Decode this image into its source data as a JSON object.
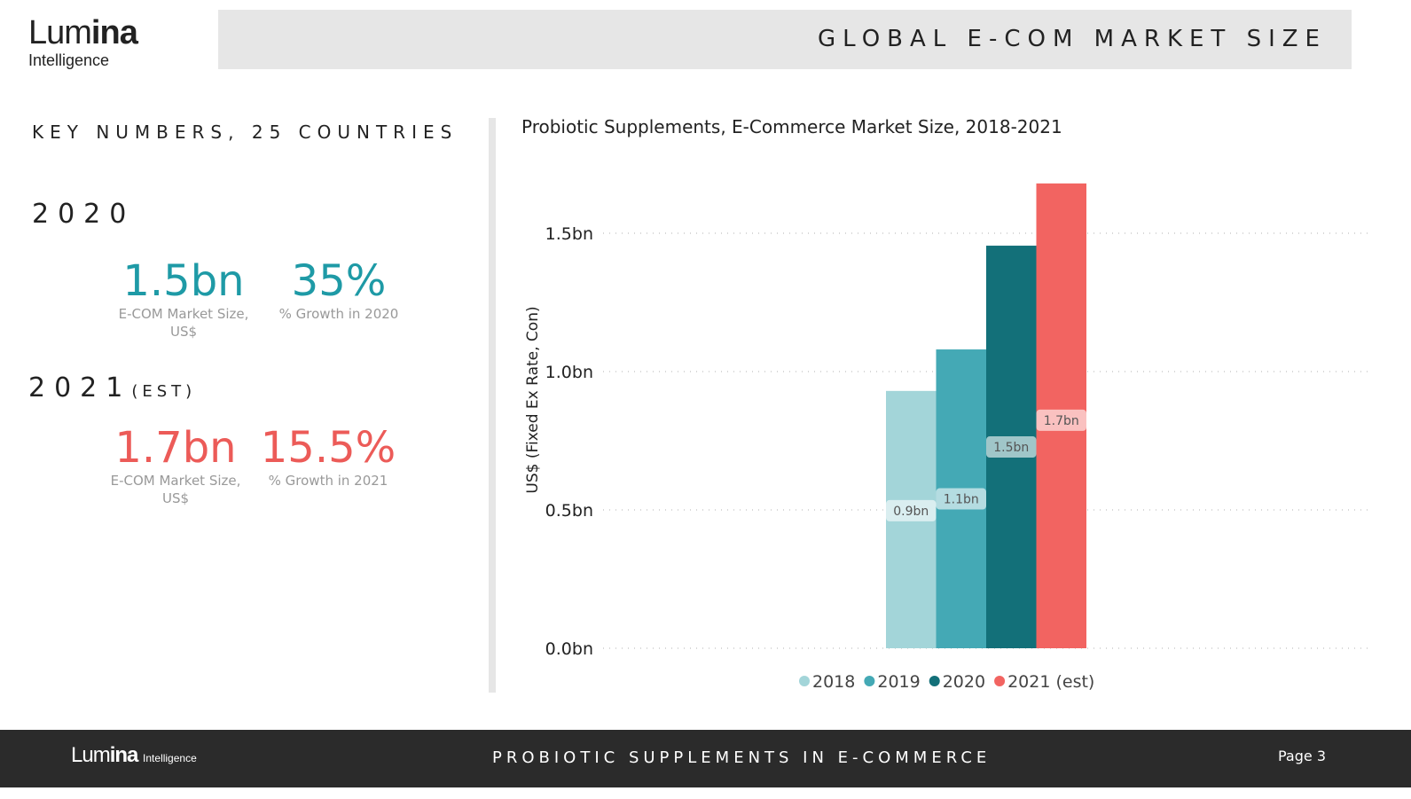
{
  "logo": {
    "brand_light": "Lum",
    "brand_bold": "ina",
    "sub": "Intelligence"
  },
  "header": {
    "title": "GLOBAL E-COM MARKET SIZE"
  },
  "key_numbers": {
    "heading": "KEY NUMBERS, 25 COUNTRIES",
    "y2020": {
      "year": "2020",
      "market_value": "1.5bn",
      "market_caption": "E-COM Market Size, US$",
      "growth_value": "35%",
      "growth_caption": "% Growth in 2020"
    },
    "y2021": {
      "year": "2021",
      "suffix": "(EST)",
      "market_value": "1.7bn",
      "market_caption": "E-COM Market Size, US$",
      "growth_value": "15.5%",
      "growth_caption": "% Growth in 2021"
    }
  },
  "chart_data": {
    "type": "bar",
    "title": "Probiotic Supplements, E-Commerce Market Size, 2018-2021",
    "ylabel": "US$ (Fixed Ex Rate, Con)",
    "xlabel": "",
    "ylim": [
      0,
      1.75
    ],
    "yticks": [
      0,
      0.5,
      1.0,
      1.5
    ],
    "ytick_labels": [
      "0.0bn",
      "0.5bn",
      "1.0bn",
      "1.5bn"
    ],
    "grid": true,
    "legend_position": "bottom",
    "series": [
      {
        "name": "2018",
        "value": 0.93,
        "label": "0.9bn",
        "color": "#a3d5d9"
      },
      {
        "name": "2019",
        "value": 1.08,
        "label": "1.1bn",
        "color": "#44a9b5"
      },
      {
        "name": "2020",
        "value": 1.455,
        "label": "1.5bn",
        "color": "#137079"
      },
      {
        "name": "2021 (est)",
        "value": 1.68,
        "label": "1.7bn",
        "color": "#f26461"
      }
    ]
  },
  "footer": {
    "brand_light": "Lum",
    "brand_bold": "ina",
    "brand_sub": "Intelligence",
    "title": "PROBIOTIC SUPPLEMENTS IN E-COMMERCE",
    "page": "Page 3"
  }
}
